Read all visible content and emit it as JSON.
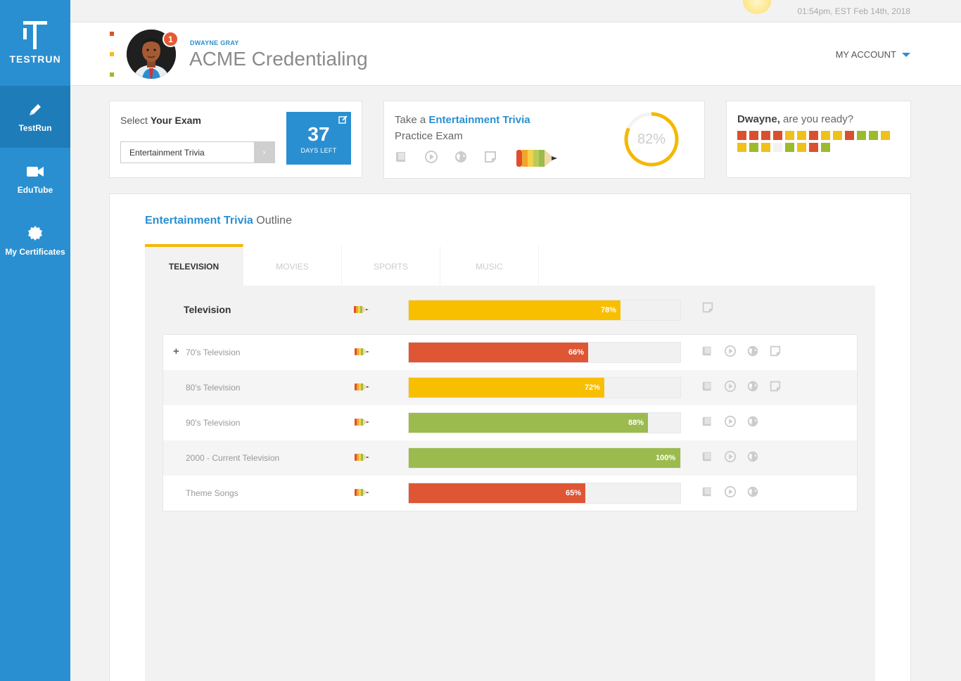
{
  "app": {
    "logo_text": "TESTRUN"
  },
  "datetime": "01:54pm, EST Feb 14th, 2018",
  "sidebar": {
    "items": [
      {
        "label": "TestRun",
        "icon": "pencil-icon",
        "active": true
      },
      {
        "label": "EduTube",
        "icon": "video-camera-icon",
        "active": false
      },
      {
        "label": "My Certificates",
        "icon": "seal-icon",
        "active": false
      }
    ]
  },
  "header": {
    "user_name": "DWAYNE GRAY",
    "org_name": "ACME Credentialing",
    "notification_count": "1",
    "account_label": "MY ACCOUNT"
  },
  "exam_select": {
    "label_prefix": "Select ",
    "label_strong": "Your Exam",
    "selected": "Entertainment Trivia",
    "go_label": "›",
    "days_left": "37",
    "days_left_label": "DAYS LEFT"
  },
  "practice": {
    "prefix": "Take a ",
    "exam_name": "Entertainment Trivia",
    "line2": "Practice Exam",
    "score_text": "82%",
    "score_value": 82
  },
  "ready": {
    "name": "Dwayne,",
    "question": " are you ready?",
    "colors": {
      "red": "#d9502e",
      "yellow": "#f0c01c",
      "green": "#9bbb2c",
      "empty": "#f2f2f2"
    },
    "squares": [
      "red",
      "red",
      "red",
      "red",
      "yellow",
      "yellow",
      "red",
      "yellow",
      "yellow",
      "red",
      "green",
      "green",
      "yellow",
      "yellow",
      "green",
      "yellow",
      "empty",
      "green",
      "yellow",
      "red",
      "green"
    ]
  },
  "outline": {
    "title_strong": "Entertainment Trivia",
    "title_rest": " Outline",
    "tabs": [
      {
        "label": "TELEVISION",
        "active": true
      },
      {
        "label": "MOVIES",
        "active": false
      },
      {
        "label": "SPORTS",
        "active": false
      },
      {
        "label": "MUSIC",
        "active": false
      }
    ],
    "summary": {
      "name": "Television",
      "percent": 78,
      "percent_label": "78%"
    },
    "rows": [
      {
        "name": "70's Television",
        "percent": 66,
        "percent_label": "66%",
        "color": "red",
        "expandable": true,
        "plus": "+",
        "icons": [
          "book-icon",
          "play-icon",
          "globe-icon",
          "note-icon"
        ]
      },
      {
        "name": "80's Television",
        "percent": 72,
        "percent_label": "72%",
        "color": "yellow",
        "expandable": false,
        "icons": [
          "book-icon",
          "play-icon",
          "globe-icon",
          "note-icon"
        ]
      },
      {
        "name": "90's Television",
        "percent": 88,
        "percent_label": "88%",
        "color": "green",
        "expandable": false,
        "icons": [
          "book-icon",
          "play-icon",
          "globe-icon"
        ]
      },
      {
        "name": "2000 - Current Television",
        "percent": 100,
        "percent_label": "100%",
        "color": "green",
        "expandable": false,
        "icons": [
          "book-icon",
          "play-icon",
          "globe-icon"
        ]
      },
      {
        "name": "Theme Songs",
        "percent": 65,
        "percent_label": "65%",
        "color": "red",
        "expandable": false,
        "icons": [
          "book-icon",
          "play-icon",
          "globe-icon"
        ]
      }
    ]
  },
  "bar_colors": {
    "red": "#df5635",
    "yellow": "#f8be00",
    "green": "#9bbb4f"
  }
}
